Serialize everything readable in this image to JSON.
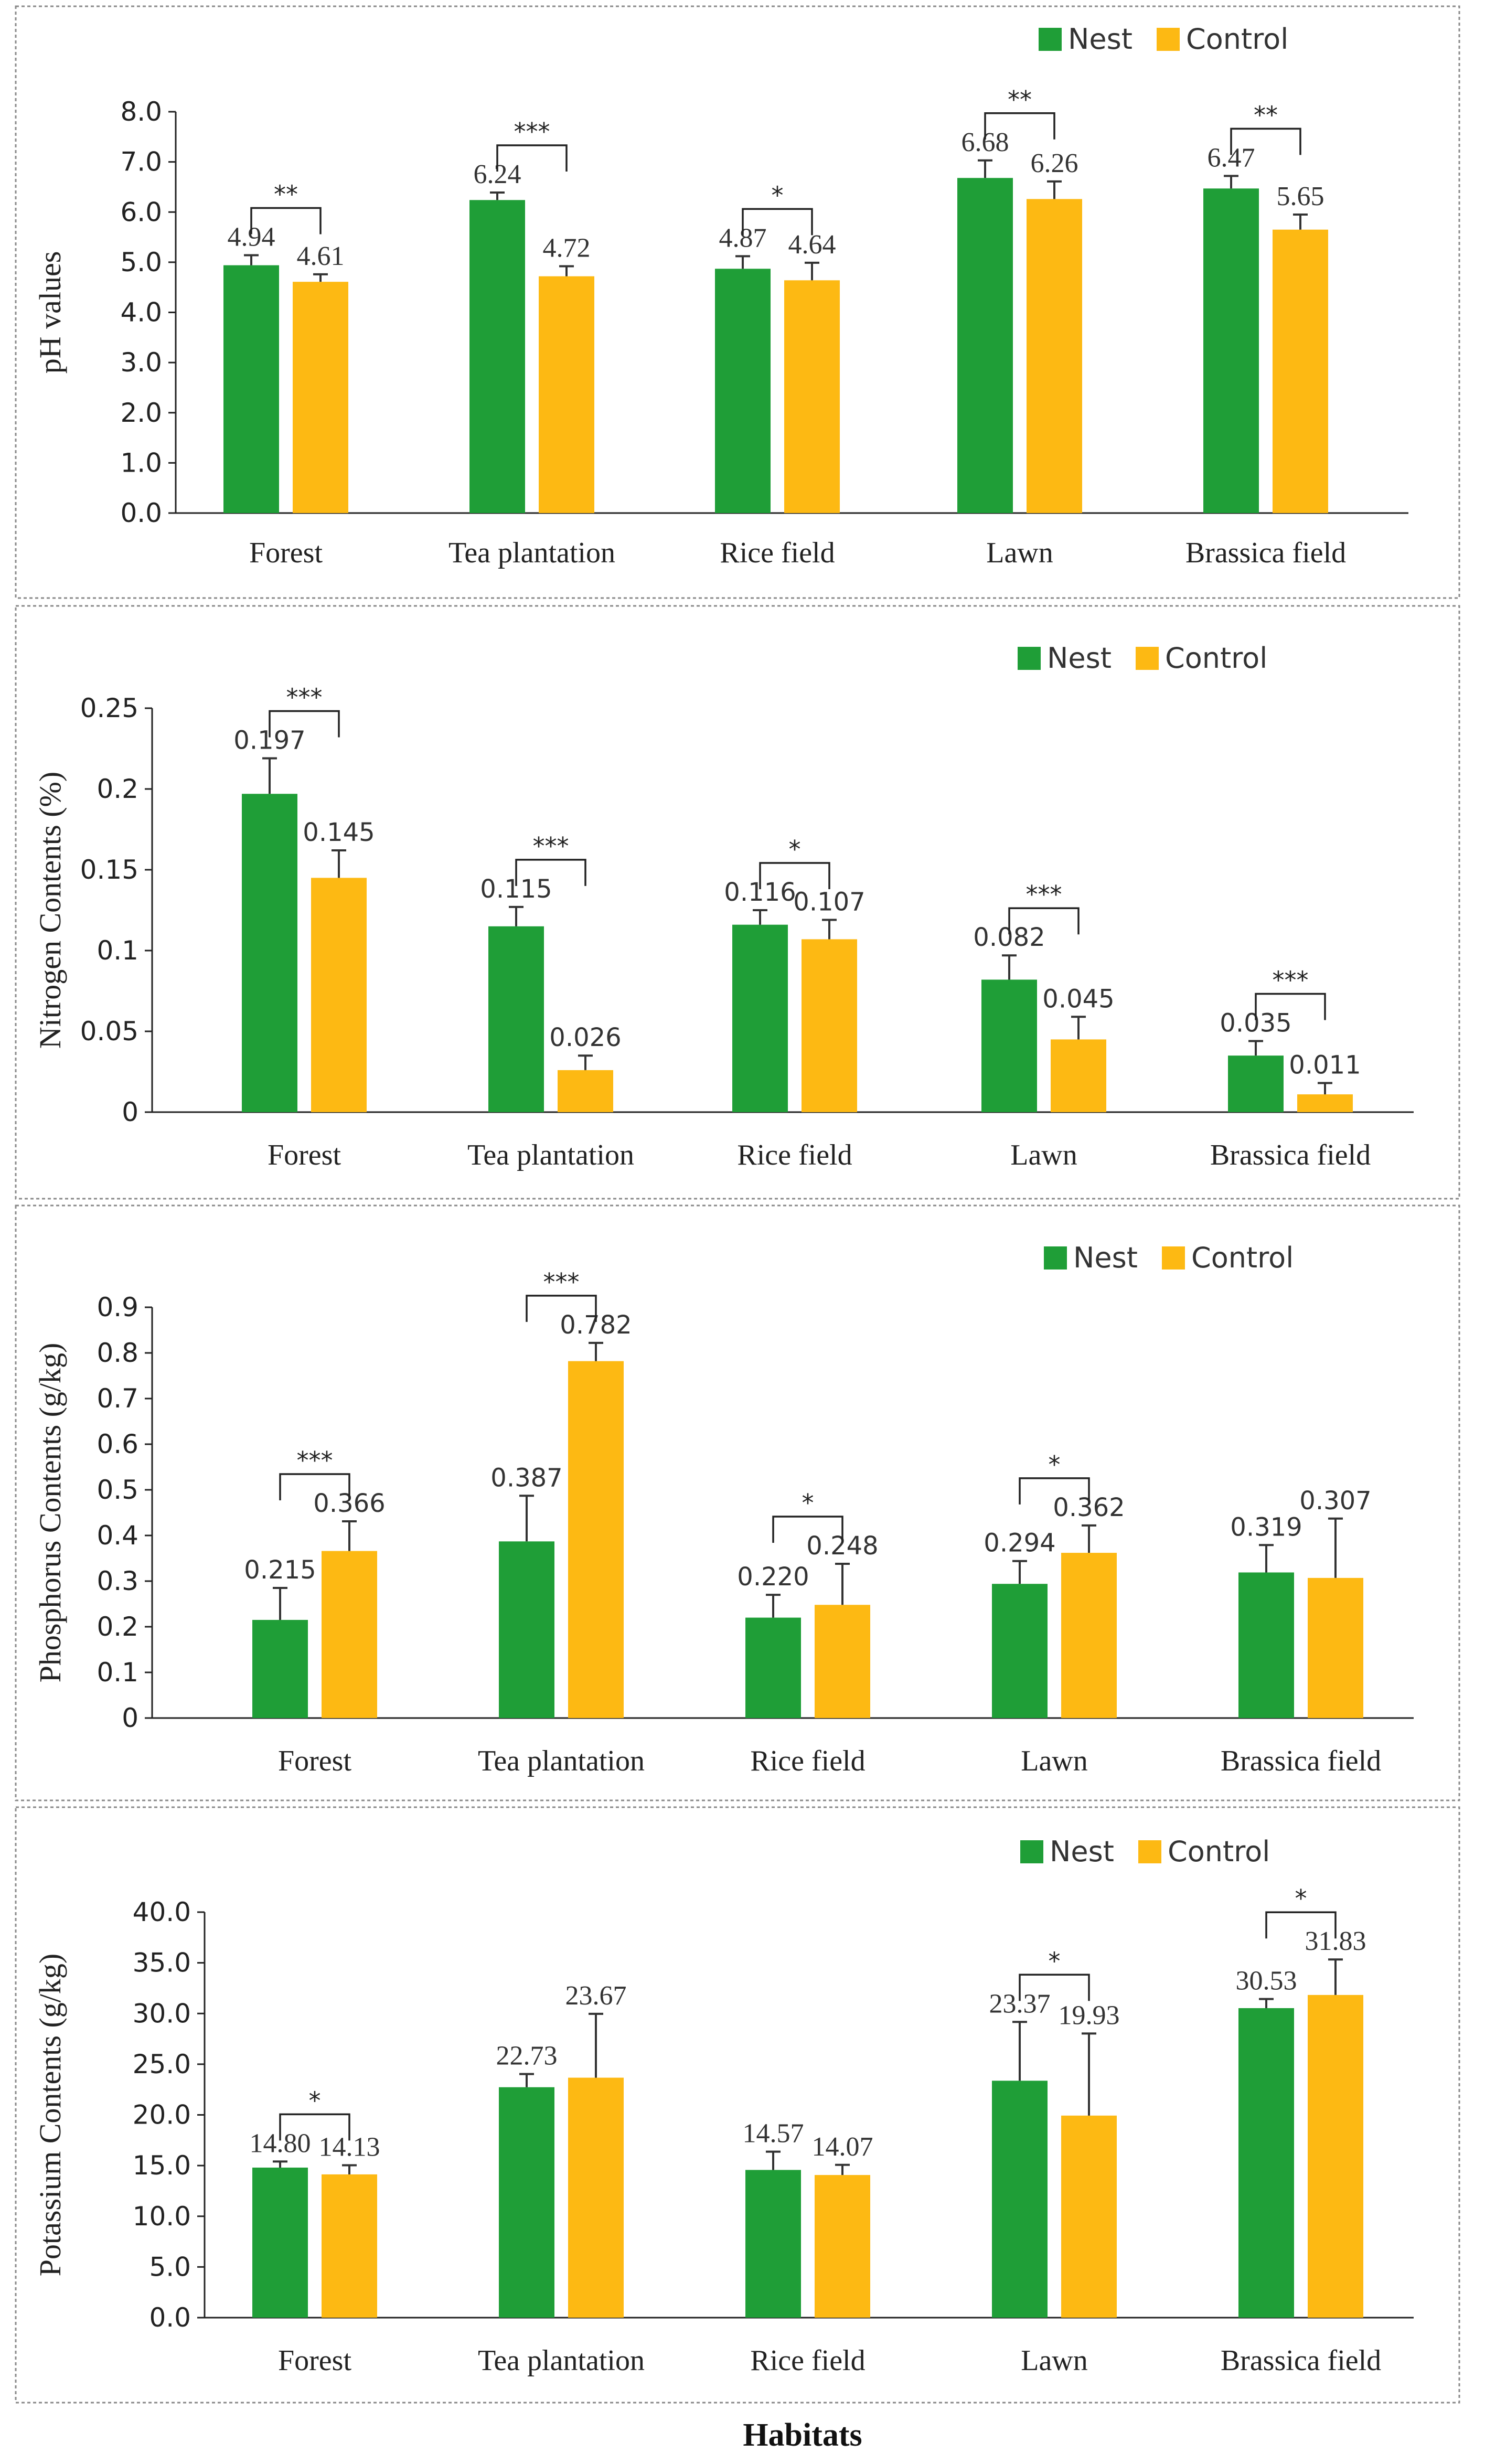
{
  "figure": {
    "x_title": "Habitats",
    "legend": [
      "Nest",
      "Control"
    ],
    "colors": {
      "nest": "#1f9e37",
      "control": "#fdb913"
    }
  },
  "chart_data": [
    {
      "type": "bar",
      "ylabel": "pH values",
      "ylim": [
        0,
        8
      ],
      "yticks": [
        "0.0",
        "1.0",
        "2.0",
        "3.0",
        "4.0",
        "5.0",
        "6.0",
        "7.0",
        "8.0"
      ],
      "categories": [
        "Forest",
        "Tea plantation",
        "Rice field",
        "Lawn",
        "Brassica field"
      ],
      "series": [
        {
          "name": "Nest",
          "values": [
            4.94,
            6.24,
            4.87,
            6.68,
            6.47
          ],
          "labels": [
            "4.94",
            "6.24",
            "4.87",
            "6.68",
            "6.47"
          ],
          "errors": [
            0.2,
            0.15,
            0.25,
            0.35,
            0.25
          ]
        },
        {
          "name": "Control",
          "values": [
            4.61,
            4.72,
            4.64,
            6.26,
            5.65
          ],
          "labels": [
            "4.61",
            "4.72",
            "4.64",
            "6.26",
            "5.65"
          ],
          "errors": [
            0.15,
            0.2,
            0.35,
            0.35,
            0.3
          ]
        }
      ],
      "significance": [
        "**",
        "***",
        "*",
        "**",
        "**"
      ]
    },
    {
      "type": "bar",
      "ylabel": "Nitrogen Contents (%)",
      "ylim": [
        0,
        0.25
      ],
      "yticks": [
        "0",
        "0.05",
        "0.1",
        "0.15",
        "0.2",
        "0.25"
      ],
      "categories": [
        "Forest",
        "Tea plantation",
        "Rice field",
        "Lawn",
        "Brassica field"
      ],
      "series": [
        {
          "name": "Nest",
          "values": [
            0.197,
            0.115,
            0.116,
            0.082,
            0.035
          ],
          "labels": [
            "0.197",
            "0.115",
            "0.116",
            "0.082",
            "0.035"
          ],
          "errors": [
            0.022,
            0.012,
            0.009,
            0.015,
            0.009
          ]
        },
        {
          "name": "Control",
          "values": [
            0.145,
            0.026,
            0.107,
            0.045,
            0.011
          ],
          "labels": [
            "0.145",
            "0.026",
            "0.107",
            "0.045",
            "0.011"
          ],
          "errors": [
            0.017,
            0.009,
            0.012,
            0.014,
            0.007
          ]
        }
      ],
      "significance": [
        "***",
        "***",
        "*",
        "***",
        "***"
      ]
    },
    {
      "type": "bar",
      "ylabel": "Phosphorus Contents (g/kg)",
      "ylim": [
        0,
        0.9
      ],
      "yticks": [
        "0",
        "0.1",
        "0.2",
        "0.3",
        "0.4",
        "0.5",
        "0.6",
        "0.7",
        "0.8",
        "0.9"
      ],
      "categories": [
        "Forest",
        "Tea plantation",
        "Rice field",
        "Lawn",
        "Brassica field"
      ],
      "series": [
        {
          "name": "Nest",
          "values": [
            0.215,
            0.387,
            0.22,
            0.294,
            0.319
          ],
          "labels": [
            "0.215",
            "0.387",
            "0.220",
            "0.294",
            "0.319"
          ],
          "errors": [
            0.07,
            0.1,
            0.05,
            0.05,
            0.06
          ]
        },
        {
          "name": "Control",
          "values": [
            0.366,
            0.782,
            0.248,
            0.362,
            0.307
          ],
          "labels": [
            "0.366",
            "0.782",
            "0.248",
            "0.362",
            "0.307"
          ],
          "errors": [
            0.065,
            0.04,
            0.09,
            0.06,
            0.13
          ]
        }
      ],
      "significance": [
        "***",
        "***",
        "*",
        "*",
        ""
      ]
    },
    {
      "type": "bar",
      "ylabel": "Potassium Contents (g/kg)",
      "ylim": [
        0,
        40
      ],
      "yticks": [
        "0.0",
        "5.0",
        "10.0",
        "15.0",
        "20.0",
        "25.0",
        "30.0",
        "35.0",
        "40.0"
      ],
      "categories": [
        "Forest",
        "Tea plantation",
        "Rice field",
        "Lawn",
        "Brassica field"
      ],
      "series": [
        {
          "name": "Nest",
          "values": [
            14.8,
            22.73,
            14.57,
            23.37,
            30.53
          ],
          "labels": [
            "14.80",
            "22.73",
            "14.57",
            "23.37",
            "30.53"
          ],
          "errors": [
            0.6,
            1.3,
            1.8,
            5.8,
            0.9
          ]
        },
        {
          "name": "Control",
          "values": [
            14.13,
            23.67,
            14.07,
            19.93,
            31.83
          ],
          "labels": [
            "14.13",
            "23.67",
            "14.07",
            "19.93",
            "31.83"
          ],
          "errors": [
            0.9,
            6.3,
            1.0,
            8.1,
            3.5
          ]
        }
      ],
      "significance": [
        "*",
        "",
        "",
        "*",
        "*"
      ]
    }
  ]
}
